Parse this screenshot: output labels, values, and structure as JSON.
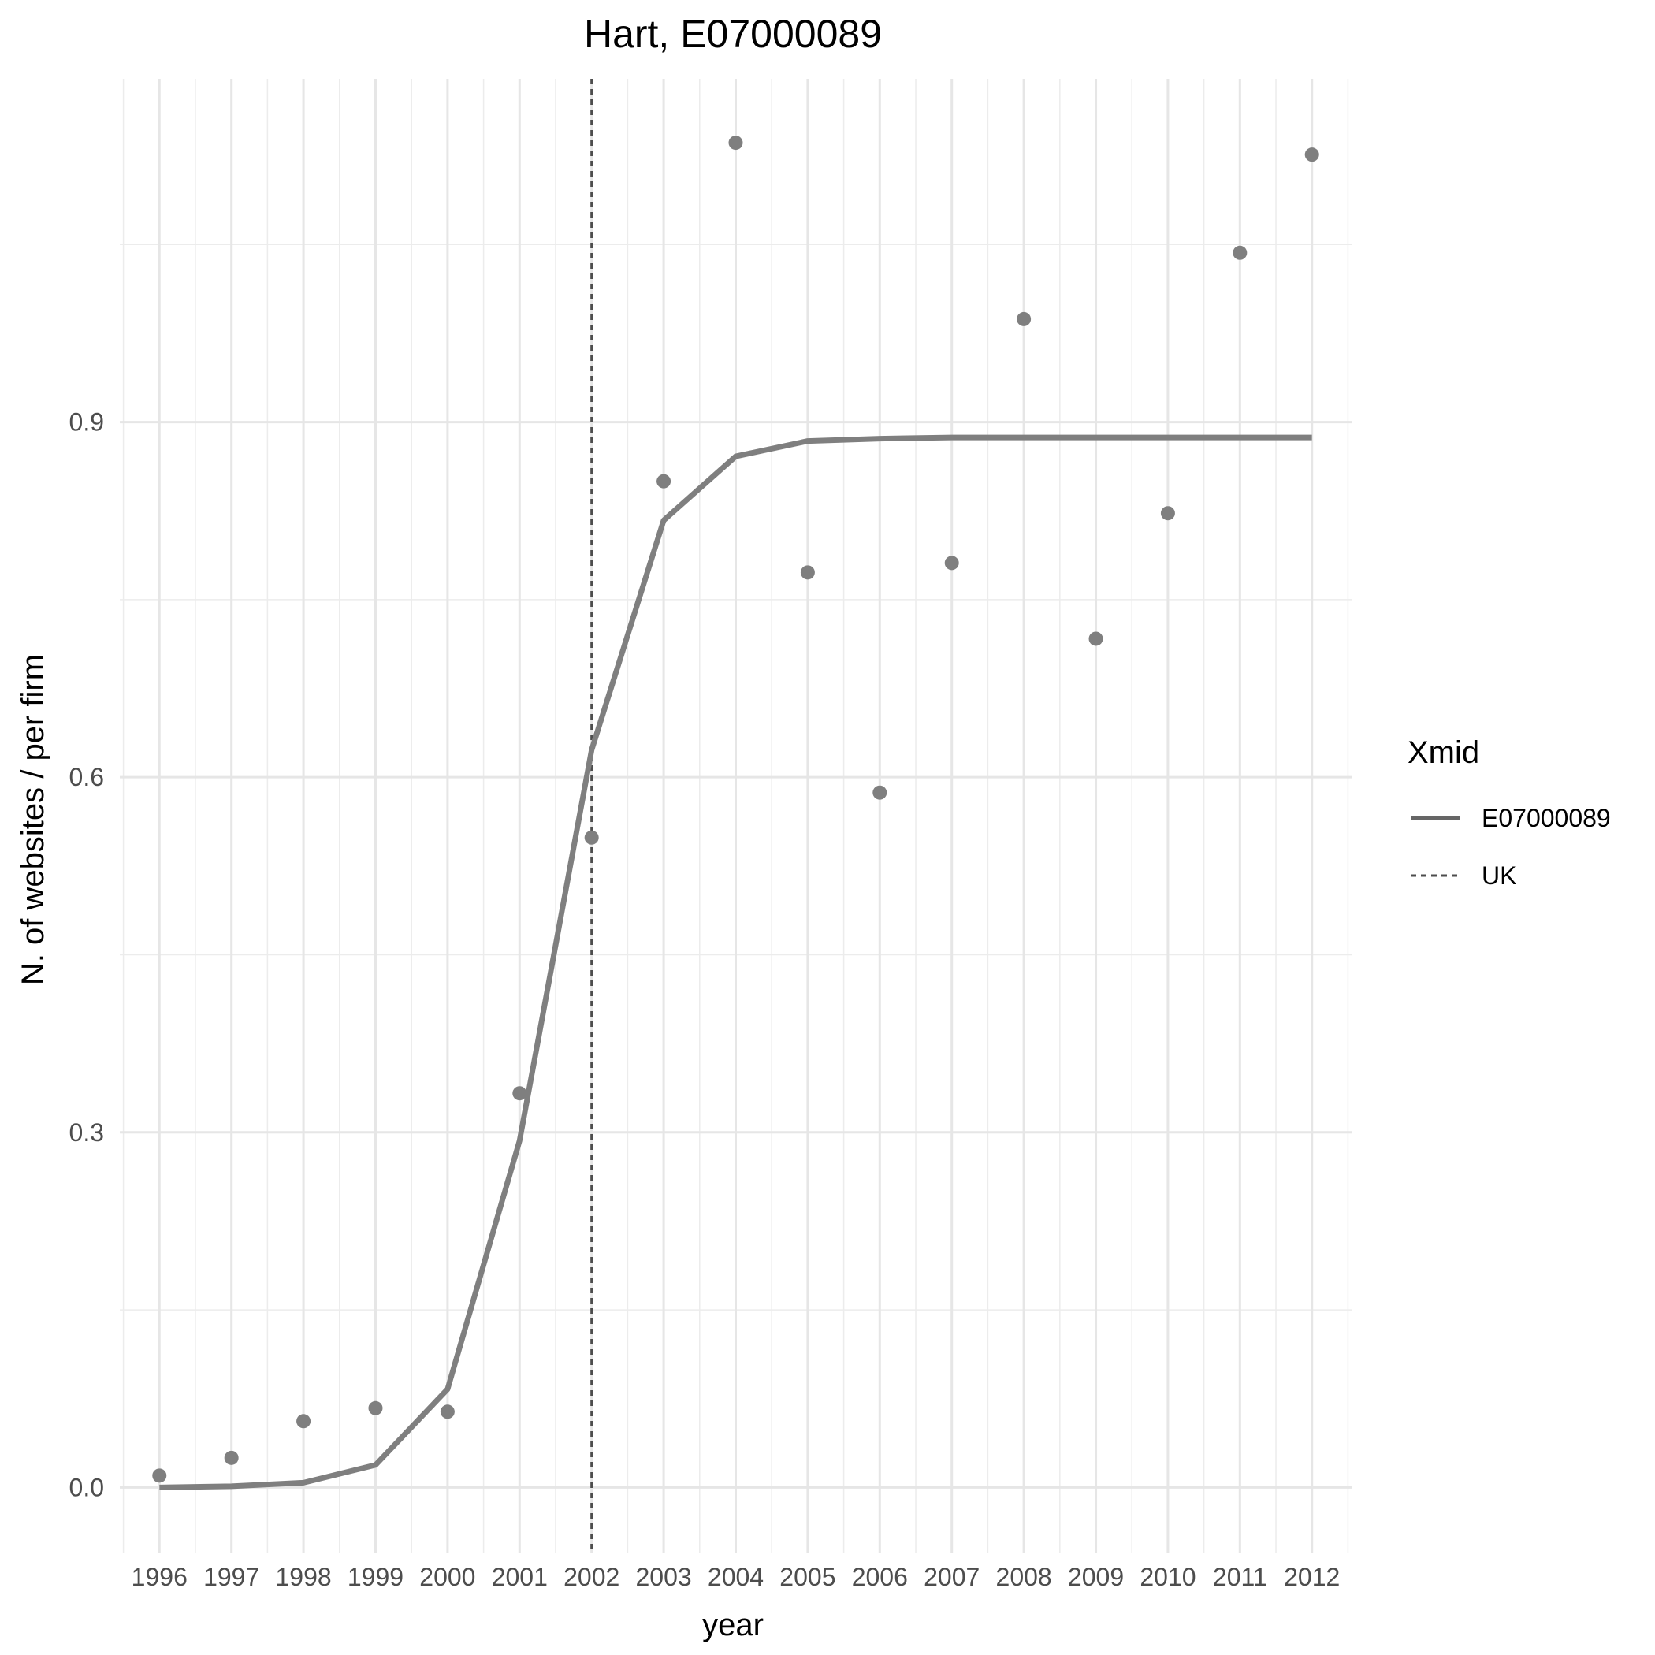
{
  "chart_data": {
    "type": "line",
    "title": "Hart, E07000089",
    "xlabel": "year",
    "ylabel": "N. of websites / per firm",
    "x": [
      1996,
      1997,
      1998,
      1999,
      2000,
      2001,
      2002,
      2003,
      2004,
      2005,
      2006,
      2007,
      2008,
      2009,
      2010,
      2011,
      2012
    ],
    "x_tick_labels": [
      "1996",
      "1997",
      "1998",
      "1999",
      "2000",
      "2001",
      "2002",
      "2003",
      "2004",
      "2005",
      "2006",
      "2007",
      "2008",
      "2009",
      "2010",
      "2011",
      "2012"
    ],
    "y_ticks": [
      0.0,
      0.3,
      0.6,
      0.9
    ],
    "y_tick_labels": [
      "0.0",
      "0.3",
      "0.6",
      "0.9"
    ],
    "xlim": [
      1995.45,
      2012.55
    ],
    "ylim": [
      -0.055,
      1.19
    ],
    "grid": true,
    "series": [
      {
        "name": "E07000089",
        "kind": "line",
        "style": "solid",
        "color": "#7f7f7f",
        "y": [
          0.0,
          0.001,
          0.004,
          0.019,
          0.083,
          0.293,
          0.623,
          0.817,
          0.871,
          0.884,
          0.886,
          0.887,
          0.887,
          0.887,
          0.887,
          0.887,
          0.887
        ]
      },
      {
        "kind": "points",
        "color": "#7f7f7f",
        "y": [
          0.01,
          0.025,
          0.056,
          0.067,
          0.064,
          0.333,
          0.549,
          0.85,
          1.136,
          0.773,
          0.587,
          0.781,
          0.987,
          0.717,
          0.823,
          1.043,
          1.126
        ]
      }
    ],
    "reference_lines": [
      {
        "name": "UK",
        "orientation": "vertical",
        "x": 2002,
        "style": "dotted",
        "color": "#4d4d4d"
      }
    ],
    "legend": {
      "title": "Xmid",
      "position": "right",
      "entries": [
        {
          "label": "E07000089",
          "style": "solid"
        },
        {
          "label": "UK",
          "style": "dotted"
        }
      ]
    }
  }
}
